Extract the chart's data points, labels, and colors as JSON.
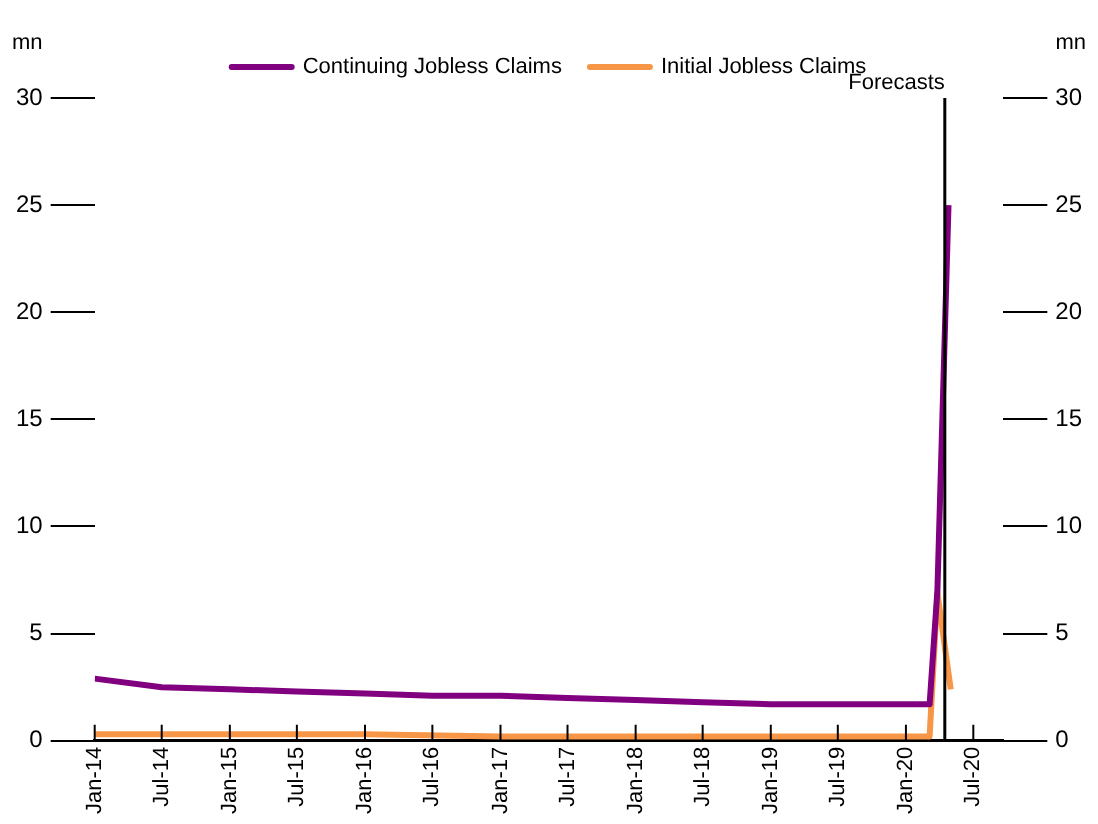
{
  "chart_data": {
    "type": "line",
    "ylabel": "mn",
    "y2label": "mn",
    "legend": "top",
    "grid": false,
    "marker": "none",
    "line_style": "solid",
    "xlim": [
      "2014-01-01",
      "2020-09-20"
    ],
    "xticks": [
      {
        "value": "2014-01-01",
        "label": "Jan-14"
      },
      {
        "value": "2014-07-01",
        "label": "Jul-14"
      },
      {
        "value": "2015-01-01",
        "label": "Jan-15"
      },
      {
        "value": "2015-07-01",
        "label": "Jul-15"
      },
      {
        "value": "2016-01-01",
        "label": "Jan-16"
      },
      {
        "value": "2016-07-01",
        "label": "Jul-16"
      },
      {
        "value": "2017-01-01",
        "label": "Jan-17"
      },
      {
        "value": "2017-07-01",
        "label": "Jul-17"
      },
      {
        "value": "2018-01-01",
        "label": "Jan-18"
      },
      {
        "value": "2018-07-01",
        "label": "Jul-18"
      },
      {
        "value": "2019-01-01",
        "label": "Jan-19"
      },
      {
        "value": "2019-07-01",
        "label": "Jul-19"
      },
      {
        "value": "2020-01-01",
        "label": "Jan-20"
      },
      {
        "value": "2020-07-01",
        "label": "Jul-20"
      }
    ],
    "ylim": [
      0,
      30
    ],
    "yticks": [
      0,
      5,
      10,
      15,
      20,
      25,
      30
    ],
    "y2lim": [
      0,
      30
    ],
    "y2ticks": [
      0,
      5,
      10,
      15,
      20,
      25,
      30
    ],
    "ref_lines": [
      {
        "axis": "x",
        "value": "2020-04-15",
        "label": "Forecasts",
        "color": "#000000"
      }
    ],
    "series": [
      {
        "name": "Continuing Jobless Claims",
        "color": "#800080",
        "x": [
          "2014-01-01",
          "2014-07-01",
          "2015-01-01",
          "2015-07-01",
          "2016-01-01",
          "2016-07-01",
          "2017-01-01",
          "2017-07-01",
          "2018-01-01",
          "2018-07-01",
          "2019-01-01",
          "2019-07-01",
          "2020-01-01",
          "2020-03-05",
          "2020-03-26",
          "2020-04-25"
        ],
        "values": [
          2.9,
          2.5,
          2.4,
          2.3,
          2.2,
          2.1,
          2.1,
          2,
          1.9,
          1.8,
          1.7,
          1.7,
          1.7,
          1.7,
          7,
          25
        ]
      },
      {
        "name": "Initial Jobless Claims",
        "color": "#f79646",
        "x": [
          "2014-01-01",
          "2015-01-01",
          "2016-01-01",
          "2017-01-01",
          "2018-01-01",
          "2019-01-01",
          "2020-01-01",
          "2020-03-05",
          "2020-03-26",
          "2020-05-01"
        ],
        "values": [
          0.3,
          0.3,
          0.3,
          0.2,
          0.2,
          0.2,
          0.2,
          0.2,
          6.9,
          2.4
        ]
      }
    ]
  }
}
